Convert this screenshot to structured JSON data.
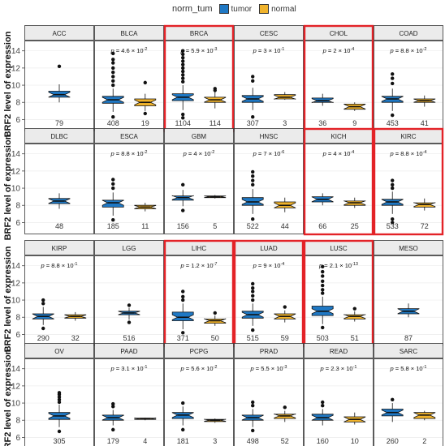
{
  "legend": {
    "title": "norm_tum",
    "items": [
      {
        "label": "tumor",
        "color": "#1f78c4"
      },
      {
        "label": "normal",
        "color": "#f0b32c"
      }
    ]
  },
  "y_axis_label": "BRF2 level of expression",
  "y_ticks": [
    6,
    8,
    10,
    12,
    14
  ],
  "ylim": [
    5.0,
    15.2
  ],
  "highlight_color": "#e32227",
  "chart_data": {
    "type": "boxplot",
    "panels": [
      {
        "name": "ACC",
        "p": "",
        "highlight": false,
        "groups": [
          {
            "type": "tumor",
            "min": 8.0,
            "q1": 8.6,
            "median": 8.9,
            "q3": 9.3,
            "max": 10.1,
            "outliers": [
              12.2
            ],
            "n": "79"
          }
        ]
      },
      {
        "name": "BLCA",
        "p": "4.6 x 10^-2",
        "highlight": false,
        "groups": [
          {
            "type": "tumor",
            "min": 6.9,
            "q1": 7.9,
            "median": 8.3,
            "q3": 8.7,
            "max": 9.6,
            "outliers": [
              10.0,
              10.5,
              11.0,
              11.5,
              12.0,
              12.6,
              13.0,
              13.7,
              6.3
            ],
            "n": "408"
          },
          {
            "type": "normal",
            "min": 7.0,
            "q1": 7.6,
            "median": 8.0,
            "q3": 8.4,
            "max": 9.0,
            "outliers": [
              10.3,
              6.7
            ],
            "n": "19"
          }
        ]
      },
      {
        "name": "BRCA",
        "p": "5.9 x 10^-3",
        "highlight": true,
        "groups": [
          {
            "type": "tumor",
            "min": 7.1,
            "q1": 8.2,
            "median": 8.6,
            "q3": 9.0,
            "max": 10.0,
            "outliers": [
              10.4,
              10.8,
              11.2,
              11.6,
              12.0,
              12.4,
              12.8,
              13.2,
              13.6,
              14.0,
              6.6,
              6.2
            ],
            "n": "1104"
          },
          {
            "type": "normal",
            "min": 7.3,
            "q1": 8.0,
            "median": 8.3,
            "q3": 8.6,
            "max": 9.2,
            "outliers": [
              9.6,
              9.4
            ],
            "n": "114"
          }
        ]
      },
      {
        "name": "CESC",
        "p": "3 x 10^-1",
        "highlight": false,
        "groups": [
          {
            "type": "tumor",
            "min": 7.1,
            "q1": 8.0,
            "median": 8.4,
            "q3": 8.8,
            "max": 9.7,
            "outliers": [
              10.5,
              11.0,
              6.3
            ],
            "n": "307"
          },
          {
            "type": "normal",
            "min": 8.3,
            "q1": 8.4,
            "median": 8.6,
            "q3": 8.9,
            "max": 9.2,
            "outliers": [],
            "n": "3"
          }
        ]
      },
      {
        "name": "CHOL",
        "p": "2 x 10^-4",
        "highlight": true,
        "groups": [
          {
            "type": "tumor",
            "min": 7.6,
            "q1": 8.0,
            "median": 8.2,
            "q3": 8.5,
            "max": 9.0,
            "outliers": [],
            "n": "36"
          },
          {
            "type": "normal",
            "min": 7.0,
            "q1": 7.2,
            "median": 7.5,
            "q3": 7.8,
            "max": 8.0,
            "outliers": [],
            "n": "9"
          }
        ]
      },
      {
        "name": "COAD",
        "p": "8.8 x 10^-2",
        "highlight": false,
        "groups": [
          {
            "type": "tumor",
            "min": 7.0,
            "q1": 8.0,
            "median": 8.4,
            "q3": 8.7,
            "max": 9.6,
            "outliers": [
              10.2,
              10.8,
              11.3,
              6.5
            ],
            "n": "453"
          },
          {
            "type": "normal",
            "min": 7.5,
            "q1": 8.0,
            "median": 8.2,
            "q3": 8.4,
            "max": 8.8,
            "outliers": [],
            "n": "41"
          }
        ]
      },
      {
        "name": "DLBC",
        "p": "",
        "highlight": false,
        "groups": [
          {
            "type": "tumor",
            "min": 7.6,
            "q1": 8.2,
            "median": 8.5,
            "q3": 8.8,
            "max": 9.4,
            "outliers": [],
            "n": "48"
          }
        ]
      },
      {
        "name": "ESCA",
        "p": "8.8 x 10^-2",
        "highlight": false,
        "groups": [
          {
            "type": "tumor",
            "min": 6.8,
            "q1": 7.8,
            "median": 8.3,
            "q3": 8.6,
            "max": 9.5,
            "outliers": [
              10.0,
              10.5,
              11.0,
              6.3
            ],
            "n": "185"
          },
          {
            "type": "normal",
            "min": 7.3,
            "q1": 7.6,
            "median": 7.8,
            "q3": 8.0,
            "max": 8.3,
            "outliers": [],
            "n": "11"
          }
        ]
      },
      {
        "name": "GBM",
        "p": "4 x 10^-2",
        "highlight": false,
        "groups": [
          {
            "type": "tumor",
            "min": 7.9,
            "q1": 8.6,
            "median": 8.9,
            "q3": 9.1,
            "max": 9.8,
            "outliers": [
              10.4,
              7.4
            ],
            "n": "156"
          },
          {
            "type": "normal",
            "min": 8.8,
            "q1": 8.9,
            "median": 9.0,
            "q3": 9.1,
            "max": 9.2,
            "outliers": [],
            "n": "5"
          }
        ]
      },
      {
        "name": "HNSC",
        "p": "7 x 10^-6",
        "highlight": false,
        "groups": [
          {
            "type": "tumor",
            "min": 7.0,
            "q1": 8.0,
            "median": 8.4,
            "q3": 8.9,
            "max": 9.9,
            "outliers": [
              10.4,
              10.9,
              11.4,
              11.9,
              6.4
            ],
            "n": "522"
          },
          {
            "type": "normal",
            "min": 7.2,
            "q1": 7.7,
            "median": 8.0,
            "q3": 8.4,
            "max": 8.9,
            "outliers": [],
            "n": "44"
          }
        ]
      },
      {
        "name": "KICH",
        "p": "4 x 10^-4",
        "highlight": true,
        "groups": [
          {
            "type": "tumor",
            "min": 8.0,
            "q1": 8.4,
            "median": 8.7,
            "q3": 9.0,
            "max": 9.4,
            "outliers": [],
            "n": "66"
          },
          {
            "type": "normal",
            "min": 7.7,
            "q1": 8.0,
            "median": 8.3,
            "q3": 8.5,
            "max": 8.9,
            "outliers": [],
            "n": "25"
          }
        ]
      },
      {
        "name": "KIRC",
        "p": "8.8 x 10^-4",
        "highlight": true,
        "groups": [
          {
            "type": "tumor",
            "min": 7.0,
            "q1": 8.0,
            "median": 8.4,
            "q3": 8.7,
            "max": 9.6,
            "outliers": [
              10.0,
              10.4,
              10.9,
              6.4,
              6.0
            ],
            "n": "533"
          },
          {
            "type": "normal",
            "min": 7.4,
            "q1": 7.8,
            "median": 8.1,
            "q3": 8.3,
            "max": 8.8,
            "outliers": [],
            "n": "72"
          }
        ]
      },
      {
        "name": "KIRP",
        "p": "8.8 x 10^-1",
        "highlight": false,
        "groups": [
          {
            "type": "tumor",
            "min": 7.1,
            "q1": 7.8,
            "median": 8.1,
            "q3": 8.4,
            "max": 9.2,
            "outliers": [
              9.6,
              10.0,
              6.7
            ],
            "n": "290"
          },
          {
            "type": "normal",
            "min": 7.6,
            "q1": 7.9,
            "median": 8.1,
            "q3": 8.3,
            "max": 8.6,
            "outliers": [],
            "n": "32"
          }
        ]
      },
      {
        "name": "LGG",
        "p": "",
        "highlight": false,
        "groups": [
          {
            "type": "tumor",
            "min": 7.7,
            "q1": 8.3,
            "median": 8.5,
            "q3": 8.7,
            "max": 9.1,
            "outliers": [
              9.4,
              7.4
            ],
            "n": "516"
          }
        ]
      },
      {
        "name": "LIHC",
        "p": "1.2 x 10^-7",
        "highlight": true,
        "groups": [
          {
            "type": "tumor",
            "min": 6.6,
            "q1": 7.6,
            "median": 8.0,
            "q3": 8.6,
            "max": 9.6,
            "outliers": [
              10.0,
              10.4,
              11.0,
              6.2
            ],
            "n": "371"
          },
          {
            "type": "normal",
            "min": 7.0,
            "q1": 7.3,
            "median": 7.6,
            "q3": 7.8,
            "max": 8.2,
            "outliers": [
              8.5
            ],
            "n": "50"
          }
        ]
      },
      {
        "name": "LUAD",
        "p": "9 x 10^-4",
        "highlight": true,
        "groups": [
          {
            "type": "tumor",
            "min": 7.0,
            "q1": 7.9,
            "median": 8.3,
            "q3": 8.7,
            "max": 9.6,
            "outliers": [
              10.0,
              10.5,
              11.0,
              11.4,
              11.9,
              6.5
            ],
            "n": "515"
          },
          {
            "type": "normal",
            "min": 7.4,
            "q1": 7.8,
            "median": 8.1,
            "q3": 8.4,
            "max": 8.8,
            "outliers": [
              9.2
            ],
            "n": "59"
          }
        ]
      },
      {
        "name": "LUSC",
        "p": "2.1 x 10^-13",
        "highlight": true,
        "groups": [
          {
            "type": "tumor",
            "min": 7.2,
            "q1": 8.2,
            "median": 8.7,
            "q3": 9.3,
            "max": 10.4,
            "outliers": [
              10.8,
              11.2,
              11.7,
              12.2,
              12.8,
              13.3,
              13.9,
              6.8
            ],
            "n": "503"
          },
          {
            "type": "normal",
            "min": 7.5,
            "q1": 7.8,
            "median": 8.1,
            "q3": 8.3,
            "max": 8.7,
            "outliers": [
              9.0
            ],
            "n": "51"
          }
        ]
      },
      {
        "name": "MESO",
        "p": "",
        "highlight": false,
        "groups": [
          {
            "type": "tumor",
            "min": 8.0,
            "q1": 8.4,
            "median": 8.7,
            "q3": 9.0,
            "max": 9.6,
            "outliers": [],
            "n": "87"
          }
        ]
      },
      {
        "name": "OV",
        "p": "",
        "highlight": false,
        "groups": [
          {
            "type": "tumor",
            "min": 7.2,
            "q1": 8.1,
            "median": 8.5,
            "q3": 8.9,
            "max": 9.8,
            "outliers": [
              10.1,
              10.4,
              10.7,
              11.0,
              11.2,
              6.7
            ],
            "n": "305"
          }
        ]
      },
      {
        "name": "PAAD",
        "p": "3.1 x 10^-1",
        "highlight": false,
        "groups": [
          {
            "type": "tumor",
            "min": 7.4,
            "q1": 8.0,
            "median": 8.3,
            "q3": 8.6,
            "max": 9.2,
            "outliers": [
              9.6,
              9.9,
              6.9
            ],
            "n": "179"
          },
          {
            "type": "normal",
            "min": 8.0,
            "q1": 8.1,
            "median": 8.2,
            "q3": 8.25,
            "max": 8.3,
            "outliers": [],
            "n": "4"
          }
        ]
      },
      {
        "name": "PCPG",
        "p": "5.6 x 10^-2",
        "highlight": false,
        "groups": [
          {
            "type": "tumor",
            "min": 7.4,
            "q1": 8.2,
            "median": 8.6,
            "q3": 8.9,
            "max": 9.6,
            "outliers": [
              10.0,
              6.9
            ],
            "n": "181"
          },
          {
            "type": "normal",
            "min": 7.7,
            "q1": 7.85,
            "median": 8.0,
            "q3": 8.1,
            "max": 8.2,
            "outliers": [],
            "n": "3"
          }
        ]
      },
      {
        "name": "PRAD",
        "p": "5.5 x 10^-3",
        "highlight": false,
        "groups": [
          {
            "type": "tumor",
            "min": 7.2,
            "q1": 8.0,
            "median": 8.3,
            "q3": 8.6,
            "max": 9.3,
            "outliers": [
              9.7,
              10.1,
              6.8
            ],
            "n": "498"
          },
          {
            "type": "normal",
            "min": 7.8,
            "q1": 8.2,
            "median": 8.5,
            "q3": 8.7,
            "max": 9.1,
            "outliers": [
              9.5
            ],
            "n": "52"
          }
        ]
      },
      {
        "name": "READ",
        "p": "2.3 x 10^-1",
        "highlight": false,
        "groups": [
          {
            "type": "tumor",
            "min": 7.4,
            "q1": 8.0,
            "median": 8.3,
            "q3": 8.7,
            "max": 9.3,
            "outliers": [
              9.7,
              10.1
            ],
            "n": "160"
          },
          {
            "type": "normal",
            "min": 7.5,
            "q1": 7.8,
            "median": 8.1,
            "q3": 8.4,
            "max": 8.9,
            "outliers": [],
            "n": "10"
          }
        ]
      },
      {
        "name": "SARC",
        "p": "5.8 x 10^-1",
        "highlight": false,
        "groups": [
          {
            "type": "tumor",
            "min": 7.8,
            "q1": 8.5,
            "median": 8.9,
            "q3": 9.3,
            "max": 10.0,
            "outliers": [
              10.4
            ],
            "n": "260"
          },
          {
            "type": "normal",
            "min": 8.0,
            "q1": 8.2,
            "median": 8.6,
            "q3": 8.9,
            "max": 9.1,
            "outliers": [],
            "n": "2"
          }
        ]
      }
    ]
  }
}
